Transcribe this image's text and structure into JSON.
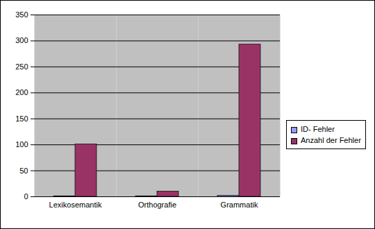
{
  "chart_data": {
    "type": "bar",
    "categories": [
      "Lexikosemantik",
      "Orthografie",
      "Grammatik"
    ],
    "series": [
      {
        "name": "ID- Fehler",
        "color": "#9999ff",
        "values": [
          1,
          1,
          2
        ]
      },
      {
        "name": "Anzahl der Fehler",
        "color": "#993366",
        "values": [
          101,
          10,
          293
        ]
      }
    ],
    "ylim": [
      0,
      350
    ],
    "yticks": [
      0,
      50,
      100,
      150,
      200,
      250,
      300,
      350
    ],
    "grid": true,
    "legend": "right"
  }
}
